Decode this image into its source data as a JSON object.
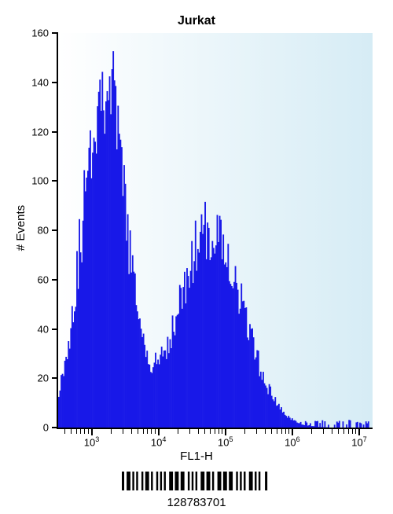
{
  "chart": {
    "title": "Jurkat",
    "xlabel": "FL1-H",
    "ylabel": "# Events",
    "type": "histogram",
    "background_gradient": [
      "#ffffff",
      "#d6ecf5"
    ],
    "fill_color": "#1818e8",
    "border_color": "#000000",
    "title_fontsize": 16,
    "label_fontsize": 15,
    "tick_fontsize": 13,
    "ylim": [
      0,
      160
    ],
    "ytick_step": 20,
    "yticks": [
      0,
      20,
      40,
      60,
      80,
      100,
      120,
      140,
      160
    ],
    "xscale": "log",
    "xlim_exp": [
      2.5,
      7.2
    ],
    "xticks_exp": [
      3,
      4,
      5,
      6,
      7
    ],
    "xtick_labels": [
      "10^3",
      "10^4",
      "10^5",
      "10^6",
      "10^7"
    ],
    "peak1": {
      "center_exp": 3.18,
      "height_events": 144,
      "width_exp": 0.32
    },
    "peak2": {
      "center_exp": 4.78,
      "height_events": 80,
      "width_exp": 0.48
    }
  },
  "barcode": {
    "value": "128783701"
  }
}
